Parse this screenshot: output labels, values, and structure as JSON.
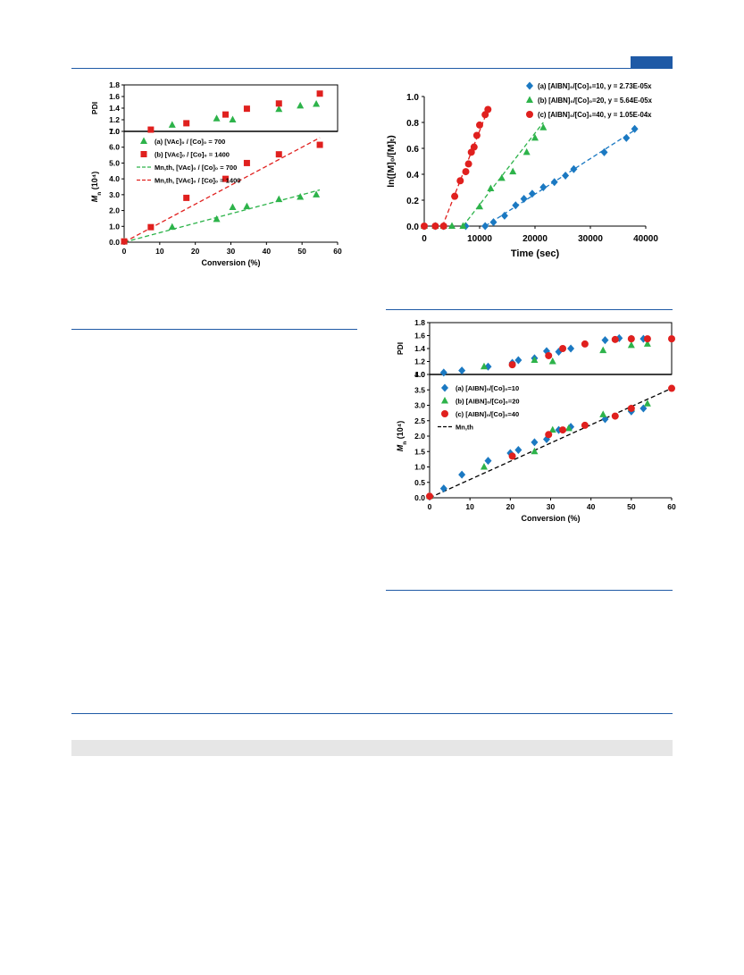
{
  "colors": {
    "rule": "#1f5aa6",
    "green": "#2db34a",
    "red": "#e0201e",
    "blue": "#1b79c2",
    "band": "#e6e6e6"
  },
  "chart_data": [
    {
      "id": "fig-left",
      "type": "scatter",
      "panels": {
        "pdi": {
          "ylabel": "PDI",
          "ylim": [
            1.0,
            1.8
          ],
          "yticks": [
            "1.0",
            "1.2",
            "1.4",
            "1.6",
            "1.8"
          ]
        },
        "mn": {
          "ylabel_main": "M",
          "ylabel_sub": "n",
          "ylabel_rest": " (10⁴)",
          "ylim": [
            0,
            7
          ],
          "yticks": [
            "0.0",
            "1.0",
            "2.0",
            "3.0",
            "4.0",
            "5.0",
            "6.0",
            "7.0"
          ]
        }
      },
      "xlabel": "Conversion (%)",
      "xlim": [
        0,
        60
      ],
      "xticks": [
        "0",
        "10",
        "20",
        "30",
        "40",
        "50",
        "60"
      ],
      "legend": {
        "placement": "top-left of Mn panel",
        "entries": [
          {
            "marker": "triangle",
            "color": "#2db34a",
            "label": "(a) [VAc]₀ / [Co]₀ = 700"
          },
          {
            "marker": "square",
            "color": "#e0201e",
            "label": "(b) [VAc]₀ / [Co]₀ = 1400"
          },
          {
            "marker": "dash",
            "color": "#2db34a",
            "label": "Mn,th, [VAc]₀ / [Co]₀ = 700"
          },
          {
            "marker": "dash",
            "color": "#e0201e",
            "label": "Mn,th, [VAc]₀ / [Co]₀ = 1400"
          }
        ]
      },
      "series": [
        {
          "name": "(a) [VAc]₀ / [Co]₀ = 700",
          "marker": "triangle",
          "color": "#2db34a",
          "pdi": [
            [
              13.5,
              1.11
            ],
            [
              26,
              1.22
            ],
            [
              30.5,
              1.2
            ],
            [
              43.5,
              1.38
            ],
            [
              49.5,
              1.44
            ],
            [
              54,
              1.47
            ]
          ],
          "mn": [
            [
              0,
              0.05
            ],
            [
              13.5,
              0.95
            ],
            [
              26,
              1.45
            ],
            [
              30.5,
              2.2
            ],
            [
              34.5,
              2.25
            ],
            [
              43.5,
              2.7
            ],
            [
              49.5,
              2.85
            ],
            [
              54,
              3.0
            ]
          ]
        },
        {
          "name": "(b) [VAc]₀ / [Co]₀ = 1400",
          "marker": "square",
          "color": "#e0201e",
          "pdi": [
            [
              7.5,
              1.03
            ],
            [
              17.5,
              1.14
            ],
            [
              28.5,
              1.29
            ],
            [
              34.5,
              1.39
            ],
            [
              43.5,
              1.48
            ],
            [
              55,
              1.65
            ]
          ],
          "mn": [
            [
              0,
              0.05
            ],
            [
              7.5,
              0.95
            ],
            [
              17.5,
              2.8
            ],
            [
              28.5,
              4.0
            ],
            [
              34.5,
              5.0
            ],
            [
              43.5,
              5.55
            ],
            [
              55,
              6.15
            ]
          ]
        }
      ],
      "fit_lines": [
        {
          "color": "#2db34a",
          "x": [
            0,
            55
          ],
          "y": [
            0,
            3.3
          ]
        },
        {
          "color": "#e0201e",
          "x": [
            0,
            55
          ],
          "y": [
            0,
            6.6
          ]
        }
      ]
    },
    {
      "id": "fig-right-top",
      "type": "scatter",
      "xlabel": "Time (sec)",
      "ylabel": "ln([M]₀/[M]ₜ)",
      "xlim": [
        0,
        40000
      ],
      "ylim": [
        0,
        1.0
      ],
      "xticks": [
        "0",
        "10000",
        "20000",
        "30000",
        "40000"
      ],
      "yticks": [
        "0.0",
        "0.2",
        "0.4",
        "0.6",
        "0.8",
        "1.0"
      ],
      "legend": {
        "placement": "top-right",
        "entries": [
          {
            "marker": "diamond",
            "color": "#1b79c2",
            "label": "(a)   [AIBN]₀/[Co]₀=10, y = 2.73E-05x"
          },
          {
            "marker": "triangle",
            "color": "#2db34a",
            "label": "(b)   [AIBN]₀/[Co]₀=20, y = 5.64E-05x"
          },
          {
            "marker": "circle",
            "color": "#e0201e",
            "label": "(c)   [AIBN]₀/[Co]₀=40, y = 1.05E-04x"
          }
        ]
      },
      "series": [
        {
          "name": "(a)",
          "marker": "diamond",
          "color": "#1b79c2",
          "points": [
            [
              0,
              0
            ],
            [
              2000,
              0
            ],
            [
              3500,
              0
            ],
            [
              7500,
              0
            ],
            [
              11000,
              0
            ],
            [
              12500,
              0.03
            ],
            [
              14500,
              0.08
            ],
            [
              16500,
              0.16
            ],
            [
              18000,
              0.21
            ],
            [
              19500,
              0.25
            ],
            [
              21500,
              0.3
            ],
            [
              23500,
              0.34
            ],
            [
              25500,
              0.39
            ],
            [
              27000,
              0.44
            ],
            [
              32500,
              0.57
            ],
            [
              36500,
              0.68
            ],
            [
              38000,
              0.75
            ]
          ],
          "fit": {
            "x": [
              11000,
              38000
            ],
            "y": [
              0,
              0.74
            ]
          }
        },
        {
          "name": "(b)",
          "marker": "triangle",
          "color": "#2db34a",
          "points": [
            [
              0,
              0
            ],
            [
              2000,
              0
            ],
            [
              3500,
              0
            ],
            [
              5000,
              0
            ],
            [
              7000,
              0
            ],
            [
              10000,
              0.15
            ],
            [
              12000,
              0.29
            ],
            [
              14000,
              0.37
            ],
            [
              16000,
              0.42
            ],
            [
              18500,
              0.57
            ],
            [
              20000,
              0.68
            ],
            [
              21500,
              0.76
            ]
          ],
          "fit": {
            "x": [
              7000,
              21500
            ],
            "y": [
              0,
              0.8
            ]
          }
        },
        {
          "name": "(c)",
          "marker": "circle",
          "color": "#e0201e",
          "points": [
            [
              0,
              0
            ],
            [
              2000,
              0
            ],
            [
              3500,
              0
            ],
            [
              5500,
              0.23
            ],
            [
              6500,
              0.35
            ],
            [
              7500,
              0.42
            ],
            [
              8000,
              0.48
            ],
            [
              8500,
              0.57
            ],
            [
              9000,
              0.61
            ],
            [
              9500,
              0.7
            ],
            [
              10000,
              0.78
            ],
            [
              11000,
              0.86
            ],
            [
              11500,
              0.9
            ]
          ],
          "fit": {
            "x": [
              3300,
              11500
            ],
            "y": [
              0,
              0.9
            ]
          }
        }
      ]
    },
    {
      "id": "fig-right-bottom",
      "type": "scatter",
      "panels": {
        "pdi": {
          "ylabel": "PDI",
          "ylim": [
            1.0,
            1.8
          ],
          "yticks": [
            "1.0",
            "1.2",
            "1.4",
            "1.6",
            "1.8"
          ]
        },
        "mn": {
          "ylabel_main": "M",
          "ylabel_sub": "n",
          "ylabel_rest": " (10⁴)",
          "ylim": [
            0,
            4
          ],
          "yticks": [
            "0.0",
            "0.5",
            "1.0",
            "1.5",
            "2.0",
            "2.5",
            "3.0",
            "3.5",
            "4.0"
          ]
        }
      },
      "xlabel": "Conversion (%)",
      "xlim": [
        0,
        60
      ],
      "xticks": [
        "0",
        "10",
        "20",
        "30",
        "40",
        "50",
        "60"
      ],
      "legend": {
        "placement": "top-left of Mn panel",
        "entries": [
          {
            "marker": "diamond",
            "color": "#1b79c2",
            "label": "(a)   [AIBN]₀/[Co]₀=10"
          },
          {
            "marker": "triangle",
            "color": "#2db34a",
            "label": "(b)   [AIBN]₀/[Co]₀=20"
          },
          {
            "marker": "circle",
            "color": "#e0201e",
            "label": "(c)   [AIBN]₀/[Co]₀=40"
          },
          {
            "marker": "dash",
            "color": "#000000",
            "label": "Mn,th"
          }
        ]
      },
      "series": [
        {
          "name": "(a)",
          "marker": "diamond",
          "color": "#1b79c2",
          "pdi": [
            [
              3.5,
              1.03
            ],
            [
              8,
              1.06
            ],
            [
              14.5,
              1.12
            ],
            [
              20.5,
              1.18
            ],
            [
              22,
              1.22
            ],
            [
              26,
              1.25
            ],
            [
              29,
              1.36
            ],
            [
              32,
              1.35
            ],
            [
              35,
              1.4
            ],
            [
              43.5,
              1.53
            ],
            [
              47,
              1.56
            ],
            [
              50,
              1.55
            ],
            [
              53,
              1.55
            ]
          ],
          "mn": [
            [
              0,
              0.05
            ],
            [
              3.5,
              0.3
            ],
            [
              8,
              0.75
            ],
            [
              14.5,
              1.2
            ],
            [
              20,
              1.45
            ],
            [
              22,
              1.55
            ],
            [
              26,
              1.8
            ],
            [
              29,
              1.9
            ],
            [
              32,
              2.2
            ],
            [
              35,
              2.3
            ],
            [
              43.5,
              2.55
            ],
            [
              50,
              2.8
            ],
            [
              53,
              2.9
            ]
          ]
        },
        {
          "name": "(b)",
          "marker": "triangle",
          "color": "#2db34a",
          "pdi": [
            [
              13.5,
              1.12
            ],
            [
              26,
              1.22
            ],
            [
              30.5,
              1.2
            ],
            [
              43,
              1.37
            ],
            [
              50,
              1.45
            ],
            [
              54,
              1.47
            ]
          ],
          "mn": [
            [
              0,
              0.05
            ],
            [
              13.5,
              1.0
            ],
            [
              26,
              1.5
            ],
            [
              30.5,
              2.2
            ],
            [
              34.5,
              2.25
            ],
            [
              43,
              2.7
            ],
            [
              50,
              2.9
            ],
            [
              54,
              3.05
            ]
          ]
        },
        {
          "name": "(c)",
          "marker": "circle",
          "color": "#e0201e",
          "pdi": [
            [
              20.5,
              1.15
            ],
            [
              29.5,
              1.29
            ],
            [
              33,
              1.4
            ],
            [
              38.5,
              1.47
            ],
            [
              46,
              1.54
            ],
            [
              50,
              1.55
            ],
            [
              54,
              1.55
            ],
            [
              60,
              1.55
            ]
          ],
          "mn": [
            [
              0,
              0.05
            ],
            [
              20.5,
              1.35
            ],
            [
              29.5,
              2.05
            ],
            [
              33,
              2.2
            ],
            [
              38.5,
              2.35
            ],
            [
              46,
              2.65
            ],
            [
              50,
              2.9
            ],
            [
              60,
              3.55
            ]
          ]
        }
      ],
      "fit_lines": [
        {
          "color": "#000000",
          "x": [
            0,
            60
          ],
          "y": [
            0,
            3.55
          ]
        }
      ]
    }
  ]
}
